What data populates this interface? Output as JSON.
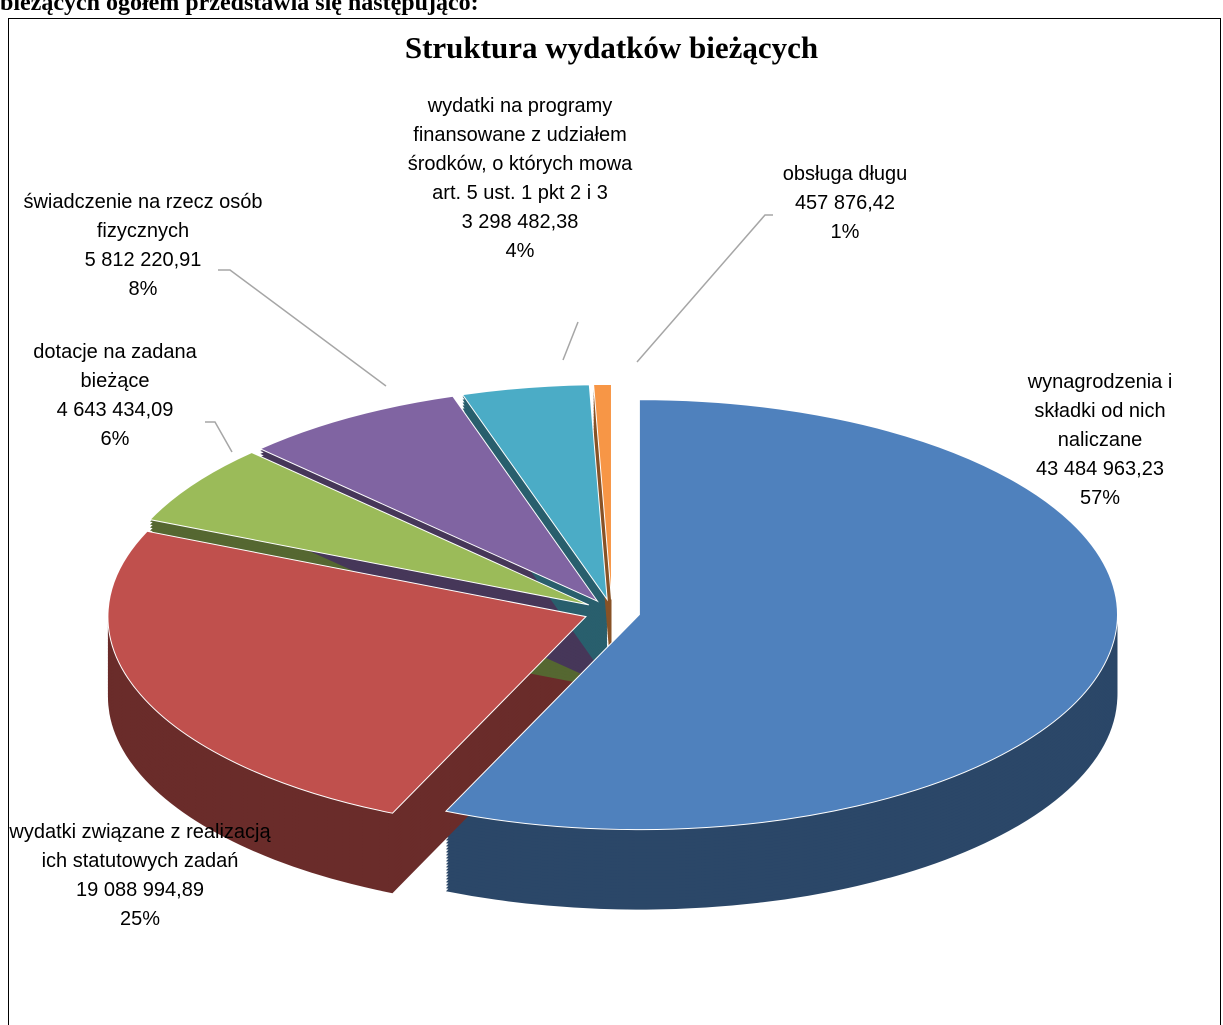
{
  "document": {
    "text": "bieżących ogółem przedstawia się następująco:"
  },
  "chart_data": {
    "type": "pie3d",
    "title": "Struktura wydatków bieżących",
    "categories": [
      "wynagrodzenia i składki od nich naliczane",
      "wydatki związane z realizacją ich statutowych zadań",
      "dotacje na zadana bieżące",
      "świadczenie na rzecz osób fizycznych",
      "wydatki na programy finansowane z udziałem środków, o których mowa art. 5 ust. 1 pkt 2 i 3",
      "obsługa długu"
    ],
    "values": [
      43484963.23,
      19088994.89,
      4643434.09,
      5812220.91,
      3298482.38,
      457876.42
    ],
    "value_labels": [
      "43 484 963,23",
      "19 088 994,89",
      "4 643 434,09",
      "5 812 220,91",
      "3 298 482,38",
      "457 876,42"
    ],
    "percents": [
      57,
      25,
      6,
      8,
      4,
      1
    ],
    "percent_labels": [
      "57%",
      "25%",
      "6%",
      "8%",
      "4%",
      "1%"
    ],
    "colors": [
      "#4f81bd",
      "#c0504d",
      "#9bbb59",
      "#8064a2",
      "#4bacc6",
      "#f79646"
    ]
  }
}
